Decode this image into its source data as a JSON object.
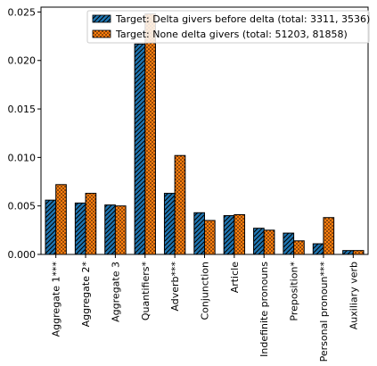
{
  "chart_data": {
    "type": "bar",
    "title": "",
    "xlabel": "",
    "ylabel": "",
    "categories": [
      "Aggregate 1***",
      "Aggregate 2*",
      "Aggregate 3",
      "Quantifiers*",
      "Adverb***",
      "Conjunction",
      "Article",
      "Indefinite pronouns",
      "Preposition*",
      "Personal pronoun***",
      "Auxiliary verb"
    ],
    "series": [
      {
        "name": "Target: Delta givers before delta (total: 3311, 3536)",
        "color": "#1f77b4",
        "pattern": "diagonal-hatch",
        "values": [
          0.0056,
          0.0053,
          0.0051,
          0.0217,
          0.0063,
          0.0043,
          0.004,
          0.0027,
          0.0022,
          0.0011,
          0.0004
        ]
      },
      {
        "name": "Target: None delta givers (total: 51203, 81858)",
        "color": "#ff7f0e",
        "pattern": "dots",
        "values": [
          0.0072,
          0.0063,
          0.005,
          0.0248,
          0.0102,
          0.0035,
          0.0041,
          0.0025,
          0.0014,
          0.0038,
          0.0004
        ]
      }
    ],
    "ylim": [
      0,
      0.0255
    ],
    "yticks": [
      0.0,
      0.005,
      0.01,
      0.015,
      0.02,
      0.025
    ],
    "ytick_labels": [
      "0.000",
      "0.005",
      "0.010",
      "0.015",
      "0.020",
      "0.025"
    ],
    "grid": false,
    "legend": "top-right"
  }
}
